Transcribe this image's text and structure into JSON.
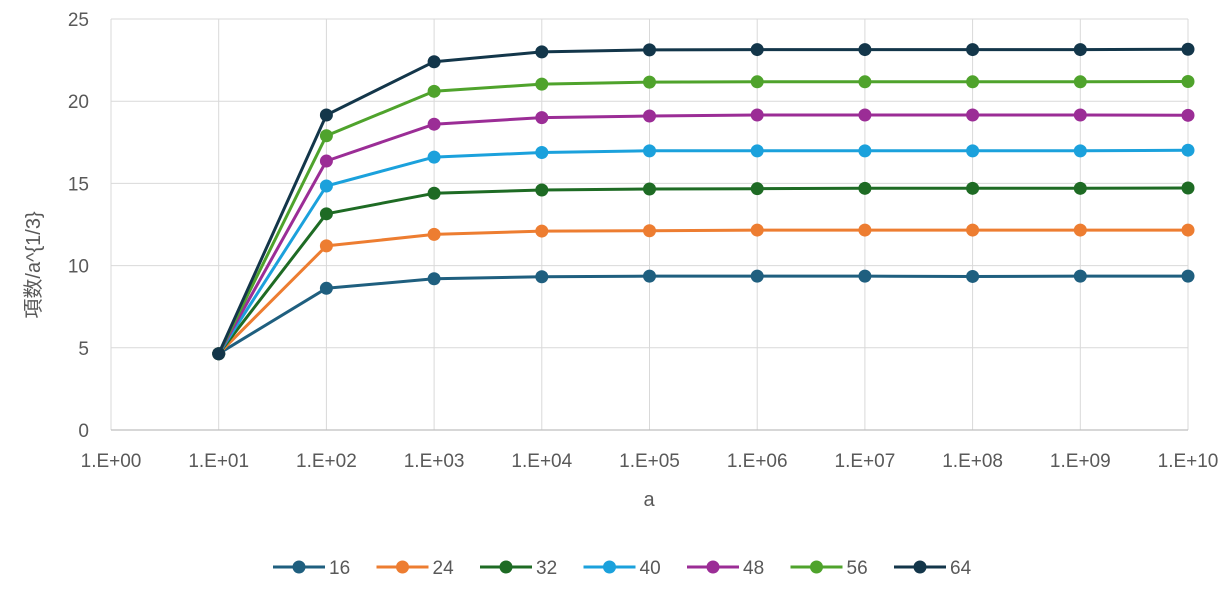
{
  "chart_data": {
    "type": "line",
    "title": "",
    "xlabel": "a",
    "ylabel": "項数/a^{1/3}",
    "x_scale": "log",
    "x": [
      10.0,
      100.0,
      1000.0,
      10000.0,
      100000.0,
      1000000.0,
      10000000.0,
      100000000.0,
      1000000000.0,
      10000000000.0
    ],
    "x_ticks": [
      "1.E+00",
      "1.E+01",
      "1.E+02",
      "1.E+03",
      "1.E+04",
      "1.E+05",
      "1.E+06",
      "1.E+07",
      "1.E+08",
      "1.E+09",
      "1.E+10"
    ],
    "xlim": [
      1,
      10000000000.0
    ],
    "ylim": [
      0,
      25
    ],
    "y_ticks": [
      "0",
      "5",
      "10",
      "15",
      "20",
      "25"
    ],
    "grid": true,
    "legend_position": "bottom",
    "series": [
      {
        "name": "16",
        "color": "#1f5f7f",
        "values": [
          4.64,
          8.62,
          9.2,
          9.32,
          9.36,
          9.36,
          9.36,
          9.34,
          9.36,
          9.36
        ]
      },
      {
        "name": "24",
        "color": "#ed7d31",
        "values": [
          4.64,
          11.2,
          11.9,
          12.1,
          12.12,
          12.16,
          12.16,
          12.16,
          12.16,
          12.16
        ]
      },
      {
        "name": "32",
        "color": "#1e6b24",
        "values": [
          4.64,
          13.15,
          14.4,
          14.6,
          14.66,
          14.68,
          14.7,
          14.7,
          14.7,
          14.72
        ]
      },
      {
        "name": "40",
        "color": "#1ba1dc",
        "values": [
          4.64,
          14.84,
          16.6,
          16.88,
          16.98,
          16.98,
          16.98,
          16.98,
          16.98,
          17.02
        ]
      },
      {
        "name": "48",
        "color": "#9b2d96",
        "values": [
          4.64,
          16.36,
          18.6,
          19.0,
          19.1,
          19.16,
          19.16,
          19.16,
          19.16,
          19.14
        ]
      },
      {
        "name": "56",
        "color": "#4fa32c",
        "values": [
          4.64,
          17.9,
          20.6,
          21.04,
          21.16,
          21.18,
          21.18,
          21.18,
          21.18,
          21.2
        ]
      },
      {
        "name": "64",
        "color": "#13364a",
        "values": [
          4.64,
          19.16,
          22.4,
          23.0,
          23.12,
          23.14,
          23.14,
          23.14,
          23.14,
          23.16
        ]
      }
    ]
  }
}
